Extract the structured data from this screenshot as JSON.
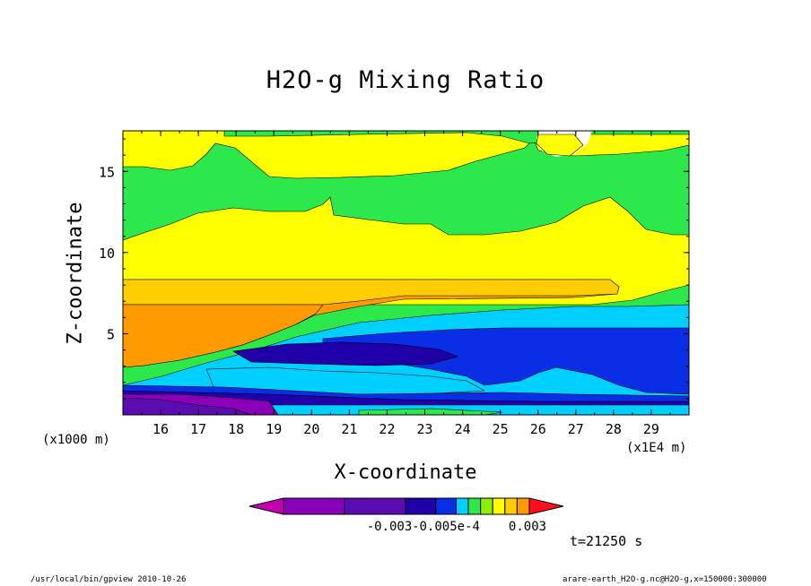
{
  "chart_data": {
    "type": "heatmap",
    "title": "H2O-g Mixing Ratio",
    "xlabel": "X-coordinate",
    "ylabel": "Z-coordinate",
    "x_unit_left": "(x1000 m)",
    "x_unit_right": "(x1E4 m)",
    "x_ticks": [
      "16",
      "17",
      "18",
      "19",
      "20",
      "21",
      "22",
      "23",
      "24",
      "25",
      "26",
      "27",
      "28",
      "29"
    ],
    "y_ticks": [
      "5",
      "10",
      "15"
    ],
    "xlim": [
      15,
      30
    ],
    "ylim": [
      0,
      17.5
    ],
    "colorbar": {
      "labels": [
        "-0.003",
        "-0.005e-4",
        "0.003"
      ],
      "colors": [
        "#c900b0",
        "#8a00b8",
        "#5b0cb0",
        "#2000a8",
        "#0a2ee6",
        "#00d0ff",
        "#2de84a",
        "#8cf000",
        "#ffff00",
        "#ffce00",
        "#ff9a00",
        "#ff0f1b"
      ]
    },
    "time_label": "t=21250 s",
    "footer_left": "/usr/local/bin/gpview  2010-10-26",
    "footer_right": "arare-earth_H2O-g.nc@H2O-g,x=150000:300000"
  }
}
